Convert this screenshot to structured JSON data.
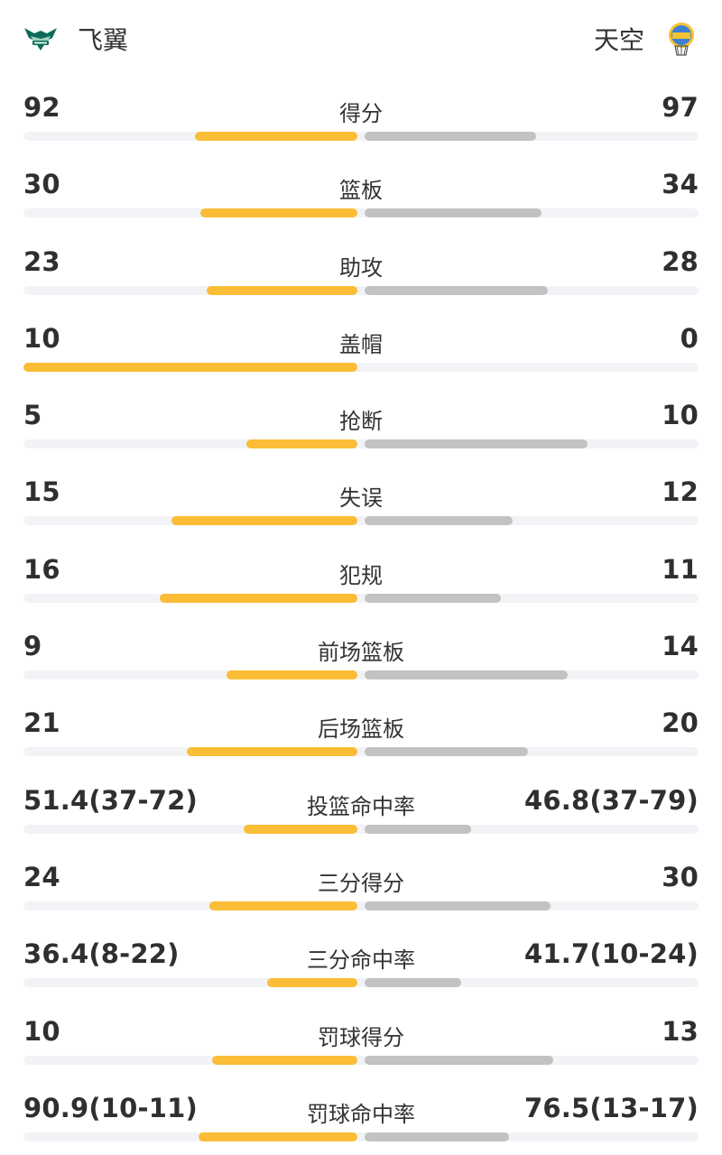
{
  "header": {
    "left_team": {
      "name": "飞翼",
      "logo": "wings-logo",
      "color": "#0c6b58"
    },
    "right_team": {
      "name": "天空",
      "logo": "sky-logo",
      "color": "#f5c233"
    }
  },
  "colors": {
    "left_bar": "#fbbd35",
    "right_bar": "#c2c2c2",
    "track": "#f2f3f6"
  },
  "stats": [
    {
      "label": "得分",
      "left": "92",
      "right": "97",
      "left_fill": 0.487,
      "right_fill": 0.513
    },
    {
      "label": "篮板",
      "left": "30",
      "right": "34",
      "left_fill": 0.469,
      "right_fill": 0.531
    },
    {
      "label": "助攻",
      "left": "23",
      "right": "28",
      "left_fill": 0.451,
      "right_fill": 0.549
    },
    {
      "label": "盖帽",
      "left": "10",
      "right": "0",
      "left_fill": 1.0,
      "right_fill": 0.0
    },
    {
      "label": "抢断",
      "left": "5",
      "right": "10",
      "left_fill": 0.333,
      "right_fill": 0.667
    },
    {
      "label": "失误",
      "left": "15",
      "right": "12",
      "left_fill": 0.556,
      "right_fill": 0.444
    },
    {
      "label": "犯规",
      "left": "16",
      "right": "11",
      "left_fill": 0.593,
      "right_fill": 0.407
    },
    {
      "label": "前场篮板",
      "left": "9",
      "right": "14",
      "left_fill": 0.391,
      "right_fill": 0.609
    },
    {
      "label": "后场篮板",
      "left": "21",
      "right": "20",
      "left_fill": 0.512,
      "right_fill": 0.488
    },
    {
      "label": "投篮命中率",
      "left": "51.4(37-72)",
      "right": "46.8(37-79)",
      "left_fill": 0.34,
      "right_fill": 0.32
    },
    {
      "label": "三分得分",
      "left": "24",
      "right": "30",
      "left_fill": 0.444,
      "right_fill": 0.556
    },
    {
      "label": "三分命中率",
      "left": "36.4(8-22)",
      "right": "41.7(10-24)",
      "left_fill": 0.27,
      "right_fill": 0.29
    },
    {
      "label": "罚球得分",
      "left": "10",
      "right": "13",
      "left_fill": 0.435,
      "right_fill": 0.565
    },
    {
      "label": "罚球命中率",
      "left": "90.9(10-11)",
      "right": "76.5(13-17)",
      "left_fill": 0.476,
      "right_fill": 0.432
    }
  ]
}
